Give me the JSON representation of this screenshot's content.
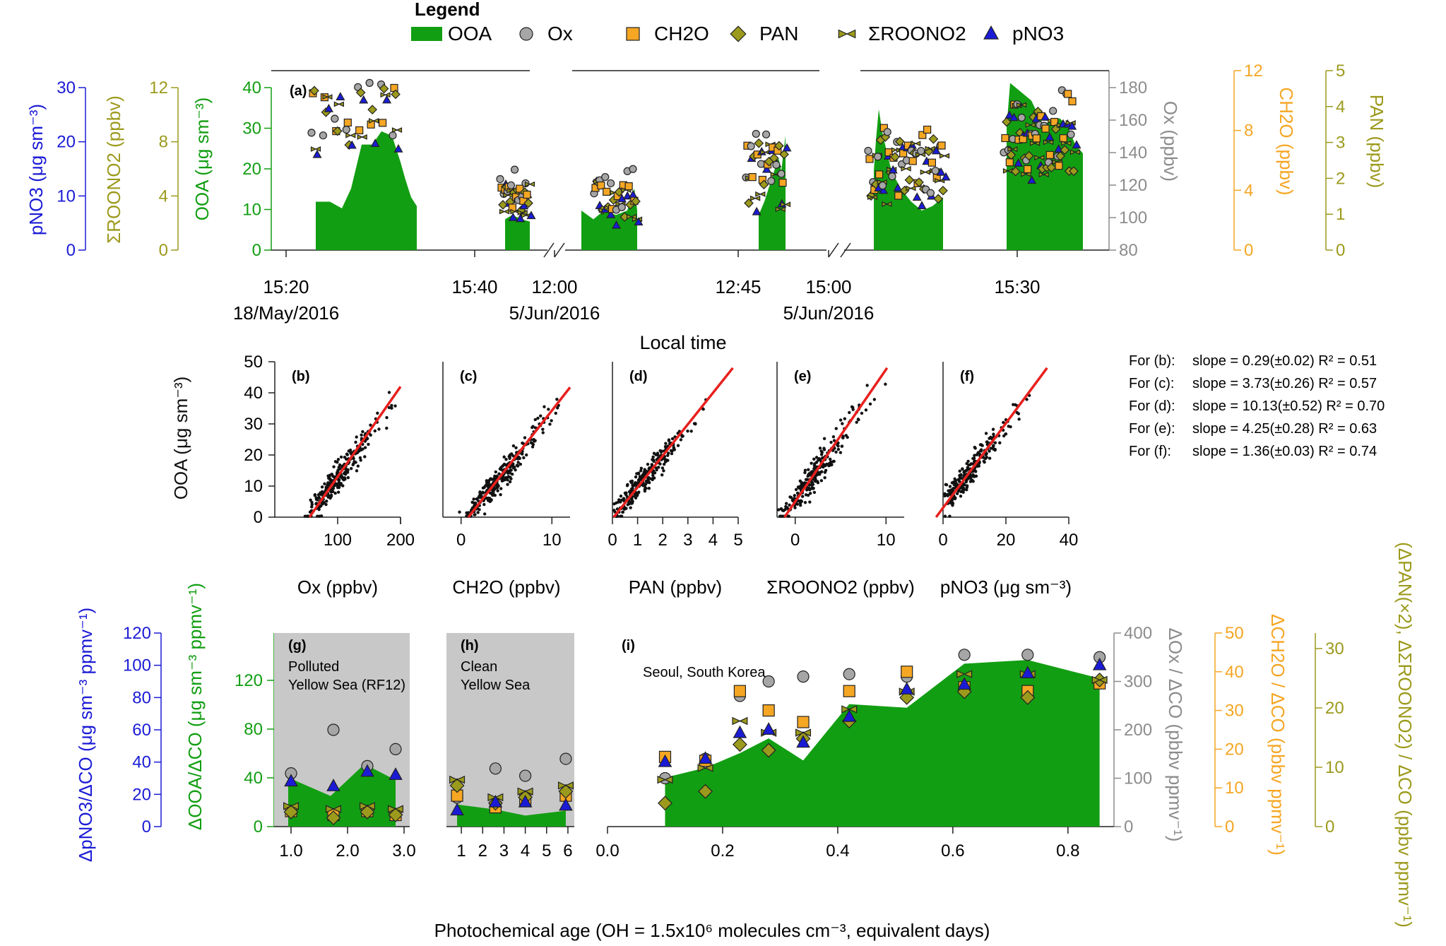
{
  "legend": {
    "title": "Legend",
    "items": [
      {
        "label": "OOA",
        "marker": "area",
        "color": "#129e12"
      },
      {
        "label": "Ox",
        "marker": "circle",
        "color": "#a6a6a6"
      },
      {
        "label": "CH2O",
        "marker": "square",
        "color": "#f5a623"
      },
      {
        "label": "PAN",
        "marker": "diamond",
        "color": "#9c9a1c"
      },
      {
        "label": "ΣROONO2",
        "marker": "bowtie",
        "color": "#9c9a1c"
      },
      {
        "label": "pNO3",
        "marker": "triangle",
        "color": "#1b1bd6"
      }
    ]
  },
  "colors": {
    "ooa": "#129e12",
    "ox": "#a6a6a6",
    "ch2o": "#f5a623",
    "pan": "#9c9a1c",
    "roono2": "#9c9a1c",
    "pno3": "#1b1bd6",
    "fit": "#e8201d",
    "shade": "#c8c8c8",
    "blue_axis": "#1b1bd6",
    "olive_axis": "#9c9a1c",
    "green_axis": "#129e12",
    "gray_axis": "#8c8c8c",
    "orange_axis": "#f5a623"
  },
  "panel_a": {
    "label": "(a)",
    "xlabel": "Local time",
    "x_ticks": [
      {
        "t": "15:20",
        "d": "18/May/2016"
      },
      {
        "t": "15:40",
        "d": ""
      },
      {
        "t": "12:00",
        "d": "5/Jun/2016"
      },
      {
        "t": "12:45",
        "d": ""
      },
      {
        "t": "15:00",
        "d": "5/Jun/2016"
      },
      {
        "t": "15:30",
        "d": ""
      }
    ],
    "left_axes": [
      {
        "label": "pNO3 (μg sm⁻³)",
        "range": [
          0,
          30
        ],
        "ticks": [
          "0",
          "10",
          "20",
          "30"
        ]
      },
      {
        "label": "ΣROONO2 (ppbv)",
        "range": [
          0,
          12
        ],
        "ticks": [
          "0",
          "4",
          "8",
          "12"
        ]
      },
      {
        "label": "OOA (μg sm⁻³)",
        "range": [
          0,
          40
        ],
        "ticks": [
          "0",
          "10",
          "20",
          "30",
          "40"
        ]
      }
    ],
    "right_axes": [
      {
        "label": "Ox (ppbv)",
        "range": [
          80,
          190
        ],
        "ticks": [
          "80",
          "100",
          "120",
          "140",
          "160",
          "180"
        ]
      },
      {
        "label": "CH2O (ppbv)",
        "range": [
          0,
          12
        ],
        "ticks": [
          "0",
          "4",
          "8",
          "12"
        ]
      },
      {
        "label": "PAN (ppbv)",
        "range": [
          0,
          5
        ],
        "ticks": [
          "0",
          "1",
          "2",
          "3",
          "4",
          "5"
        ]
      }
    ]
  },
  "scatter": {
    "ylabel": "OOA (μg sm⁻³)",
    "y_range": [
      0,
      50
    ],
    "y_ticks": [
      "0",
      "10",
      "20",
      "30",
      "40",
      "50"
    ],
    "panels": [
      {
        "label": "(b)",
        "xlabel": "Ox (ppbv)",
        "x_range": [
          0,
          200
        ],
        "x_ticks": [
          "100",
          "200"
        ],
        "slope": 0.29,
        "intercept": -16,
        "x_center": 105
      },
      {
        "label": "(c)",
        "xlabel": "CH2O (ppbv)",
        "x_range": [
          -2,
          12
        ],
        "x_ticks": [
          "0",
          "10"
        ],
        "slope": 3.73,
        "intercept": -3,
        "x_center": 4
      },
      {
        "label": "(d)",
        "xlabel": "PAN (ppbv)",
        "x_range": [
          0,
          5
        ],
        "x_ticks": [
          "0",
          "1",
          "2",
          "3",
          "4",
          "5"
        ],
        "slope": 10.13,
        "intercept": -0.5,
        "x_center": 1.6
      },
      {
        "label": "(e)",
        "xlabel": "ΣROONO2 (ppbv)",
        "x_range": [
          -2,
          12
        ],
        "x_ticks": [
          "0",
          "10"
        ],
        "slope": 4.25,
        "intercept": 5,
        "x_center": 2.5
      },
      {
        "label": "(f)",
        "xlabel": "pNO3 (μg sm⁻³)",
        "x_range": [
          0,
          40
        ],
        "x_ticks": [
          "0",
          "20",
          "40"
        ],
        "slope": 1.36,
        "intercept": 3,
        "x_center": 10
      }
    ],
    "stats": [
      {
        "for": "For (b):",
        "text": "slope = 0.29(±0.02) R² = 0.51"
      },
      {
        "for": "For (c):",
        "text": "slope = 3.73(±0.26) R² = 0.57"
      },
      {
        "for": "For (d):",
        "text": "slope = 10.13(±0.52) R² = 0.70"
      },
      {
        "for": "For (e):",
        "text": "slope = 4.25(±0.28) R² = 0.63"
      },
      {
        "for": "For (f):",
        "text": "slope = 1.36(±0.03) R² = 0.74"
      }
    ]
  },
  "chart_data": [
    {
      "type": "area",
      "panel": "g",
      "title": "Polluted Yellow Sea (RF12)",
      "label": "(g)",
      "x_range": [
        0.7,
        3.1
      ],
      "x_ticks": [
        "1.0",
        "2.0",
        "3.0"
      ],
      "ooa": {
        "x": [
          0.95,
          1.7,
          2.3,
          2.85
        ],
        "y": [
          40,
          25,
          51,
          38
        ]
      },
      "ox": {
        "x": [
          1.0,
          1.75,
          2.35,
          2.85
        ],
        "y": [
          110,
          200,
          125,
          160
        ]
      },
      "ch2o": {
        "x": [
          1.0,
          1.75,
          2.35,
          2.85
        ],
        "y": [
          4,
          3,
          4,
          3
        ]
      },
      "pan": {
        "x": [
          1.0,
          1.75,
          2.35,
          2.85
        ],
        "y": [
          2.5,
          1.5,
          2.5,
          2
        ]
      },
      "roono2": {
        "x": [
          1.0,
          1.75,
          2.35,
          2.85
        ],
        "y": [
          3.5,
          3,
          3.5,
          3
        ]
      },
      "pno3": {
        "x": [
          1.0,
          1.75,
          2.35,
          2.85
        ],
        "y": [
          28,
          25,
          34,
          32
        ]
      }
    },
    {
      "type": "area",
      "panel": "h",
      "title": "Clean Yellow Sea",
      "label": "(h)",
      "x_range": [
        0.3,
        6.3
      ],
      "x_ticks": [
        "1",
        "2",
        "3",
        "4",
        "5",
        "6"
      ],
      "ooa": {
        "x": [
          0.8,
          2.6,
          4.0,
          5.9
        ],
        "y": [
          18,
          14,
          9,
          13
        ]
      },
      "ox": {
        "x": [
          0.8,
          2.6,
          4.0,
          5.9
        ],
        "y": [
          60,
          120,
          105,
          140
        ]
      },
      "ch2o": {
        "x": [
          0.8,
          2.6,
          4.0,
          5.9
        ],
        "y": [
          8,
          5,
          7,
          8
        ]
      },
      "pan": {
        "x": [
          0.8,
          2.6,
          4.0,
          5.9
        ],
        "y": [
          7,
          4,
          5,
          6
        ]
      },
      "roono2": {
        "x": [
          0.8,
          2.6,
          4.0,
          5.9
        ],
        "y": [
          8,
          5,
          6,
          7
        ]
      },
      "pno3": {
        "x": [
          0.8,
          2.6,
          4.0,
          5.9
        ],
        "y": [
          10,
          15,
          15,
          13
        ]
      }
    },
    {
      "type": "area",
      "panel": "i",
      "title": "Seoul, South Korea",
      "label": "(i)",
      "xlabel": "Photochemical age (OH = 1.5x10⁶ molecules cm⁻³, equivalent days)",
      "x_range": [
        0.0,
        0.88
      ],
      "x_ticks": [
        "0.0",
        "0.2",
        "0.4",
        "0.6",
        "0.8"
      ],
      "ooa": {
        "x": [
          0.1,
          0.17,
          0.23,
          0.28,
          0.34,
          0.42,
          0.52,
          0.62,
          0.73,
          0.855
        ],
        "y": [
          40,
          48,
          60,
          72,
          54,
          100,
          97,
          133,
          136,
          121
        ]
      },
      "ox": {
        "x": [
          0.1,
          0.17,
          0.23,
          0.28,
          0.34,
          0.42,
          0.52,
          0.62,
          0.73,
          0.855
        ],
        "y": [
          100,
          140,
          270,
          300,
          310,
          315,
          310,
          355,
          355,
          350
        ]
      },
      "ch2o": {
        "x": [
          0.1,
          0.17,
          0.23,
          0.28,
          0.34,
          0.42,
          0.52,
          0.62,
          0.73,
          0.855
        ],
        "y": [
          18,
          17,
          35,
          30,
          27,
          35,
          40,
          36,
          35,
          37
        ]
      },
      "pan": {
        "x": [
          0.1,
          0.17,
          0.23,
          0.28,
          0.34,
          0.42,
          0.52,
          0.62,
          0.73,
          0.855
        ],
        "y": [
          4,
          6,
          14,
          13,
          15,
          18,
          22,
          23,
          22,
          25
        ]
      },
      "roono2": {
        "x": [
          0.1,
          0.17,
          0.23,
          0.28,
          0.34,
          0.42,
          0.52,
          0.62,
          0.73,
          0.855
        ],
        "y": [
          8,
          10,
          18,
          16,
          16,
          20,
          23,
          26,
          26,
          25
        ]
      },
      "pno3": {
        "x": [
          0.1,
          0.17,
          0.23,
          0.28,
          0.34,
          0.42,
          0.52,
          0.62,
          0.73,
          0.855
        ],
        "y": [
          40,
          42,
          58,
          60,
          52,
          68,
          85,
          88,
          95,
          100
        ]
      }
    }
  ],
  "bottom_axes": {
    "pno3_label": "ΔpNO3/ΔCO (μg sm⁻³ ppmv⁻¹)",
    "pno3_ticks": [
      "0",
      "20",
      "40",
      "60",
      "80",
      "100",
      "120"
    ],
    "ooa_label": "ΔOOA/ΔCO (μg sm⁻³ ppmv⁻¹)",
    "ooa_ticks": [
      "0",
      "40",
      "80",
      "120"
    ],
    "ox_label": "ΔOx / ΔCO (pbbv ppmv⁻¹)",
    "ox_ticks": [
      "0",
      "100",
      "200",
      "300",
      "400"
    ],
    "ch2o_label": "ΔCH2O / ΔCO (pbbv ppmv⁻¹)",
    "ch2o_ticks": [
      "0",
      "10",
      "20",
      "30",
      "40",
      "50"
    ],
    "pan_label": "(ΔPAN(×2), ΔΣROONO2) / ΔCO (ppbv ppmv⁻¹)",
    "pan_ticks": [
      "0",
      "10",
      "20",
      "30"
    ]
  }
}
